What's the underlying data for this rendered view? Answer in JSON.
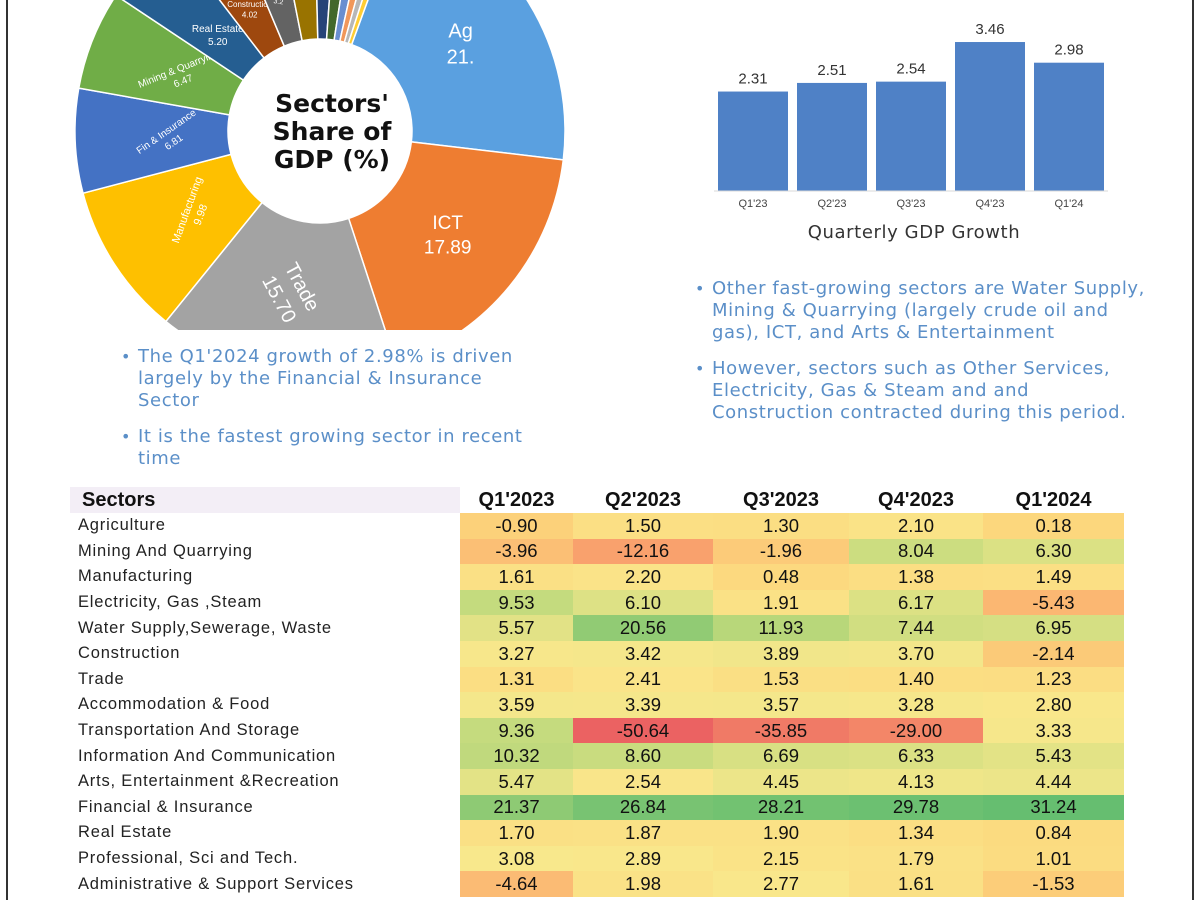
{
  "chart_data": [
    {
      "type": "pie",
      "style": "donut",
      "title": "Sectors' Share of GDP (%)",
      "slices": [
        {
          "name": "Agriculture",
          "short_label": "Ag",
          "value": 21.07,
          "value_label": "21.",
          "color": "#5aa0e0"
        },
        {
          "name": "ICT",
          "short_label": "ICT",
          "value": 17.89,
          "value_label": "17.89",
          "color": "#ee7d31"
        },
        {
          "name": "Trade",
          "short_label": "Trade",
          "value": 15.7,
          "value_label": "15.70",
          "color": "#a3a3a3"
        },
        {
          "name": "Manufacturing",
          "short_label": "Manufacturing",
          "value": 9.98,
          "value_label": "9.98",
          "color": "#fec000"
        },
        {
          "name": "Fin & Insurance",
          "short_label": "Fin & Insurance",
          "value": 6.81,
          "value_label": "6.81",
          "color": "#4472c4"
        },
        {
          "name": "Mining & Quarrying",
          "short_label": "Mining & Quarrying",
          "value": 6.47,
          "value_label": "6.47",
          "color": "#70ad47"
        },
        {
          "name": "Real Estate",
          "short_label": "Real Estate",
          "value": 5.2,
          "value_label": "5.20",
          "color": "#255e91"
        },
        {
          "name": "Construction",
          "short_label": "Construction",
          "value": 4.02,
          "value_label": "4.02",
          "color": "#9e480e"
        },
        {
          "name": "Professional, Sci and Tech",
          "short_label": "Professional, Sci and Tech",
          "value": 3.2,
          "value_label": "3.2",
          "color": "#636363"
        },
        {
          "name": "Other Services",
          "short_label": "Other Services",
          "value": 2.7,
          "value_label": "2.7",
          "color": "#997300"
        },
        {
          "name": "Other 1",
          "short_label": "",
          "value": 1.5,
          "value_label": "",
          "color": "#264478"
        },
        {
          "name": "Other 2",
          "short_label": "",
          "value": 1.3,
          "value_label": "",
          "color": "#43682b"
        },
        {
          "name": "Other 3",
          "short_label": "",
          "value": 1.0,
          "value_label": "",
          "color": "#698ed0"
        },
        {
          "name": "Other 4",
          "short_label": "",
          "value": 0.8,
          "value_label": "",
          "color": "#f1975a"
        },
        {
          "name": "Other 5",
          "short_label": "",
          "value": 0.7,
          "value_label": "",
          "color": "#b7b7b7"
        },
        {
          "name": "Other 6",
          "short_label": "",
          "value": 0.6,
          "value_label": "",
          "color": "#ffcd33"
        }
      ]
    },
    {
      "type": "bar",
      "title": "Quarterly GDP Growth",
      "categories": [
        "Q1'23",
        "Q2'23",
        "Q3'23",
        "Q4'23",
        "Q1'24"
      ],
      "values": [
        2.31,
        2.51,
        2.54,
        3.46,
        2.98
      ],
      "value_labels": [
        "2.31",
        "2.51",
        "2.54",
        "3.46",
        "2.98"
      ],
      "ylim": [
        0,
        3.6
      ],
      "color": "#4f81c6"
    },
    {
      "type": "table",
      "columns": [
        "Sectors",
        "Q1'2023",
        "Q2'2023",
        "Q3'2023",
        "Q4'2023",
        "Q1'2024"
      ],
      "rows": [
        {
          "sector": "Agriculture",
          "values": [
            "-0.90",
            "1.50",
            "1.30",
            "2.10",
            "0.18"
          ]
        },
        {
          "sector": "Mining And Quarrying",
          "values": [
            "-3.96",
            "-12.16",
            "-1.96",
            "8.04",
            "6.30"
          ]
        },
        {
          "sector": "Manufacturing",
          "values": [
            "1.61",
            "2.20",
            "0.48",
            "1.38",
            "1.49"
          ]
        },
        {
          "sector": "Electricity, Gas ,Steam",
          "values": [
            "9.53",
            "6.10",
            "1.91",
            "6.17",
            "-5.43"
          ]
        },
        {
          "sector": "Water Supply,Sewerage, Waste",
          "values": [
            "5.57",
            "20.56",
            "11.93",
            "7.44",
            "6.95"
          ]
        },
        {
          "sector": "Construction",
          "values": [
            "3.27",
            "3.42",
            "3.89",
            "3.70",
            "-2.14"
          ]
        },
        {
          "sector": "Trade",
          "values": [
            "1.31",
            "2.41",
            "1.53",
            "1.40",
            "1.23"
          ]
        },
        {
          "sector": "Accommodation & Food",
          "values": [
            "3.59",
            "3.39",
            "3.57",
            "3.28",
            "2.80"
          ]
        },
        {
          "sector": "Transportation And Storage",
          "values": [
            "9.36",
            "-50.64",
            "-35.85",
            "-29.00",
            "3.33"
          ]
        },
        {
          "sector": "Information And Communication",
          "values": [
            "10.32",
            "8.60",
            "6.69",
            "6.33",
            "5.43"
          ]
        },
        {
          "sector": "Arts, Entertainment &Recreation",
          "values": [
            "5.47",
            "2.54",
            "4.45",
            "4.13",
            "4.44"
          ]
        },
        {
          "sector": "Financial & Insurance",
          "values": [
            "21.37",
            "26.84",
            "28.21",
            "29.78",
            "31.24"
          ]
        },
        {
          "sector": "Real Estate",
          "values": [
            "1.70",
            "1.87",
            "1.90",
            "1.34",
            "0.84"
          ]
        },
        {
          "sector": "Professional, Sci and Tech.",
          "values": [
            "3.08",
            "2.89",
            "2.15",
            "1.79",
            "1.01"
          ]
        },
        {
          "sector": "Administrative & Support Services",
          "values": [
            "-4.64",
            "1.98",
            "2.77",
            "1.61",
            "-1.53"
          ]
        }
      ]
    }
  ],
  "bullets_left": [
    "The Q1'2024 growth of 2.98% is driven largely by the Financial & Insurance Sector",
    "It is the fastest growing sector in recent time"
  ],
  "bullets_right": [
    "Other fast-growing sectors are Water Supply, Mining & Quarrying (largely crude oil and gas), ICT, and Arts & Entertainment",
    "However, sectors such as Other Services, Electricity, Gas & Steam and and Construction contracted during this period."
  ]
}
